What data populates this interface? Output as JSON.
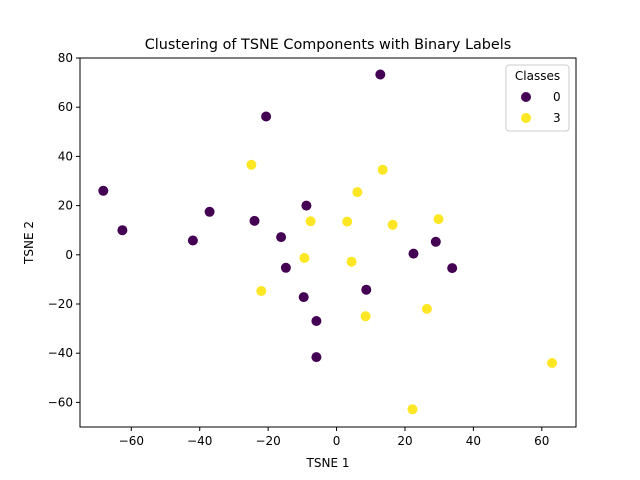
{
  "chart_data": {
    "type": "scatter",
    "title": "Clustering of TSNE Components with Binary Labels",
    "xlabel": "TSNE 1",
    "ylabel": "TSNE 2",
    "xlim": [
      -75,
      70
    ],
    "ylim": [
      -70,
      80
    ],
    "xticks": [
      -60,
      -40,
      -20,
      0,
      20,
      40,
      60
    ],
    "yticks": [
      -60,
      -40,
      -20,
      0,
      20,
      40,
      60,
      80
    ],
    "grid": false,
    "legend": {
      "title": "Classes",
      "placement": "upper-right"
    },
    "series": [
      {
        "name": "0",
        "color": "#440154",
        "points": [
          [
            12.8,
            73.3
          ],
          [
            -20.6,
            56.2
          ],
          [
            -68.2,
            26.0
          ],
          [
            -62.6,
            10.0
          ],
          [
            -37.1,
            17.5
          ],
          [
            -42.0,
            5.8
          ],
          [
            -24.0,
            13.8
          ],
          [
            -8.8,
            20.0
          ],
          [
            -16.2,
            7.2
          ],
          [
            -14.8,
            -5.3
          ],
          [
            -9.6,
            -17.2
          ],
          [
            -5.9,
            -26.9
          ],
          [
            -5.9,
            -41.6
          ],
          [
            8.7,
            -14.2
          ],
          [
            22.5,
            0.5
          ],
          [
            29.0,
            5.3
          ],
          [
            33.8,
            -5.4
          ]
        ]
      },
      {
        "name": "3",
        "color": "#fde725",
        "points": [
          [
            -24.9,
            36.6
          ],
          [
            13.5,
            34.6
          ],
          [
            6.1,
            25.5
          ],
          [
            -7.6,
            13.6
          ],
          [
            3.1,
            13.5
          ],
          [
            16.4,
            12.2
          ],
          [
            29.8,
            14.5
          ],
          [
            -9.4,
            -1.3
          ],
          [
            4.4,
            -2.8
          ],
          [
            -22.0,
            -14.7
          ],
          [
            8.5,
            -25.0
          ],
          [
            26.4,
            -22.0
          ],
          [
            63.0,
            -44.0
          ],
          [
            22.2,
            -62.8
          ]
        ]
      }
    ]
  }
}
